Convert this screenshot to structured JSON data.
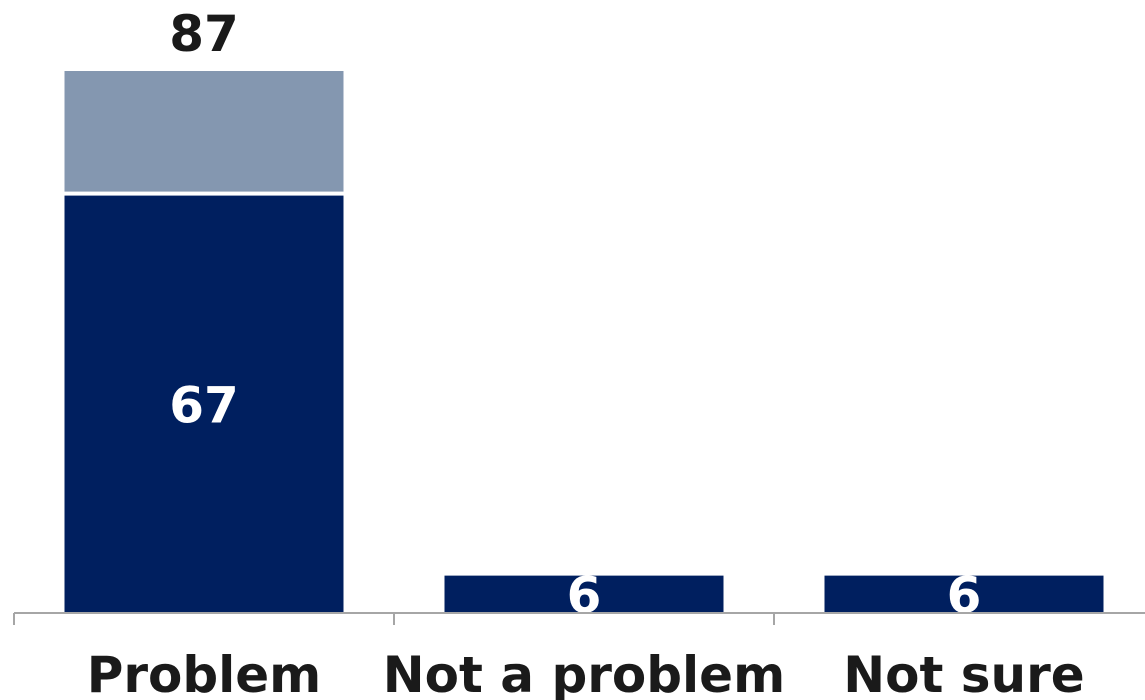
{
  "chart_data": {
    "type": "bar",
    "stacked": true,
    "categories": [
      "Problem",
      "Not a problem",
      "Not sure"
    ],
    "series": [
      {
        "values": [
          67,
          6,
          6
        ],
        "color": "#001f5f",
        "labels": [
          "67",
          "6",
          "6"
        ]
      },
      {
        "values": [
          20,
          0,
          0
        ],
        "color": "#8497b0"
      }
    ],
    "totals": [
      "87",
      "",
      ""
    ],
    "ylim": [
      0,
      100
    ],
    "grid": false,
    "legend": "none"
  }
}
